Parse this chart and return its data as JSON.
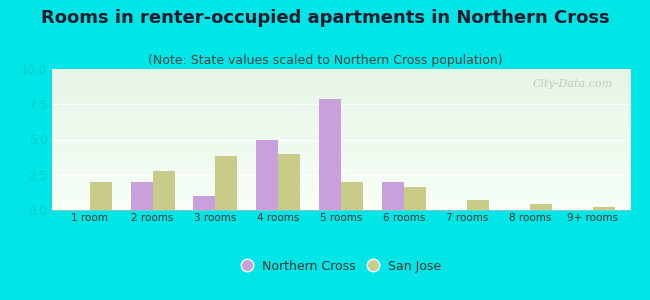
{
  "title": "Rooms in renter-occupied apartments in Northern Cross",
  "subtitle": "(Note: State values scaled to Northern Cross population)",
  "categories": [
    "1 room",
    "2 rooms",
    "3 rooms",
    "4 rooms",
    "5 rooms",
    "6 rooms",
    "7 rooms",
    "8 rooms",
    "9+ rooms"
  ],
  "northern_cross": [
    0,
    2.0,
    1.0,
    5.0,
    7.9,
    2.0,
    0,
    0,
    0
  ],
  "san_jose": [
    2.0,
    2.8,
    3.8,
    4.0,
    2.0,
    1.6,
    0.7,
    0.4,
    0.2
  ],
  "nc_color": "#c9a0dc",
  "sj_color": "#c8cc88",
  "bg_color": "#00e5e5",
  "ylim": [
    0,
    10
  ],
  "yticks": [
    0,
    2.5,
    5,
    7.5,
    10
  ],
  "bar_width": 0.35,
  "title_fontsize": 13,
  "subtitle_fontsize": 9,
  "legend_nc": "Northern Cross",
  "legend_sj": "San Jose",
  "watermark": "City-Data.com",
  "tick_label_color": "#00cccc",
  "axis_label_color": "#333333"
}
